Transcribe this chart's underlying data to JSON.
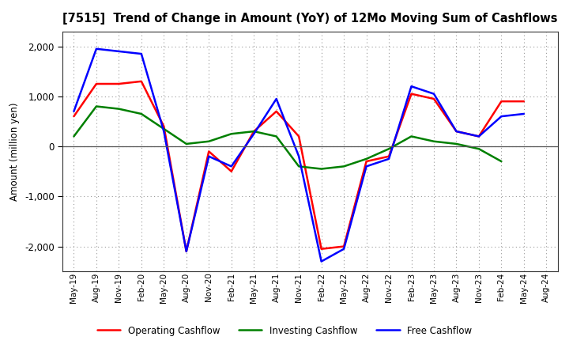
{
  "title": "[7515]  Trend of Change in Amount (YoY) of 12Mo Moving Sum of Cashflows",
  "ylabel": "Amount (million yen)",
  "x_labels": [
    "May-19",
    "Aug-19",
    "Nov-19",
    "Feb-20",
    "May-20",
    "Aug-20",
    "Nov-20",
    "Feb-21",
    "May-21",
    "Aug-21",
    "Nov-21",
    "Feb-22",
    "May-22",
    "Aug-22",
    "Nov-22",
    "Feb-23",
    "May-23",
    "Aug-23",
    "Nov-23",
    "Feb-24",
    "May-24",
    "Aug-24"
  ],
  "operating": [
    600,
    1250,
    1250,
    1300,
    400,
    -2100,
    -100,
    -500,
    300,
    700,
    200,
    -2050,
    -2000,
    -300,
    -200,
    1050,
    950,
    300,
    200,
    900,
    900,
    null
  ],
  "investing": [
    200,
    800,
    750,
    650,
    350,
    50,
    100,
    250,
    300,
    200,
    -400,
    -450,
    -400,
    -250,
    -50,
    200,
    100,
    50,
    -50,
    -300,
    null,
    null
  ],
  "free": [
    700,
    1950,
    1900,
    1850,
    300,
    -2100,
    -200,
    -400,
    250,
    950,
    -200,
    -2300,
    -2050,
    -400,
    -250,
    1200,
    1050,
    300,
    200,
    600,
    650,
    null
  ],
  "operating_color": "#ff0000",
  "investing_color": "#008000",
  "free_color": "#0000ff",
  "ylim": [
    -2500,
    2300
  ],
  "yticks": [
    -2000,
    -1000,
    0,
    1000,
    2000
  ],
  "bg_color": "#ffffff",
  "grid_color": "#999999",
  "legend_labels": [
    "Operating Cashflow",
    "Investing Cashflow",
    "Free Cashflow"
  ]
}
